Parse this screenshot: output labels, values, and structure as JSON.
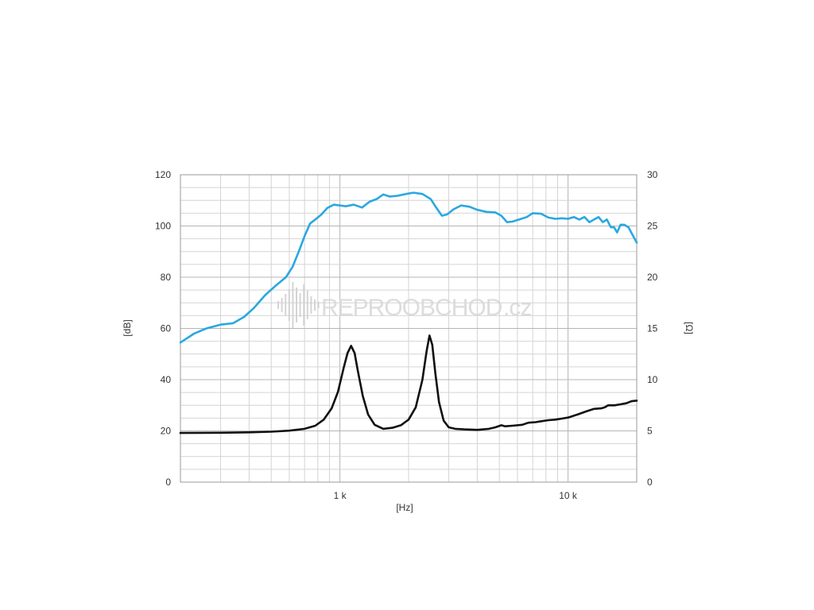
{
  "chart_data": {
    "type": "line",
    "xlabel": "[Hz]",
    "ylabel_left": "[dB]",
    "ylabel_right": "[Ω]",
    "x_scale": "log",
    "xlim": [
      200,
      20000
    ],
    "ylim_left": [
      0,
      120
    ],
    "ylim_right": [
      0,
      30
    ],
    "x_tick_labels": [
      {
        "value": 1000,
        "label": "1 k"
      },
      {
        "value": 10000,
        "label": "10 k"
      }
    ],
    "y_left_ticks": [
      0,
      20,
      40,
      60,
      80,
      100,
      120
    ],
    "y_right_ticks": [
      0,
      5,
      10,
      15,
      20,
      25,
      30
    ],
    "grid": true,
    "series": [
      {
        "axis": "left",
        "color": "#29a8e0",
        "points": [
          [
            200,
            54.5
          ],
          [
            230,
            58
          ],
          [
            260,
            60
          ],
          [
            300,
            61.5
          ],
          [
            340,
            62
          ],
          [
            380,
            64.5
          ],
          [
            420,
            68
          ],
          [
            470,
            73
          ],
          [
            520,
            76.5
          ],
          [
            580,
            80
          ],
          [
            620,
            84
          ],
          [
            660,
            90
          ],
          [
            700,
            96
          ],
          [
            740,
            101
          ],
          [
            780,
            102.5
          ],
          [
            830,
            104.5
          ],
          [
            880,
            107
          ],
          [
            940,
            108.3
          ],
          [
            1000,
            108
          ],
          [
            1060,
            107.7
          ],
          [
            1150,
            108.3
          ],
          [
            1250,
            107.2
          ],
          [
            1350,
            109.5
          ],
          [
            1450,
            110.5
          ],
          [
            1550,
            112.3
          ],
          [
            1650,
            111.5
          ],
          [
            1800,
            111.8
          ],
          [
            1950,
            112.5
          ],
          [
            2100,
            113
          ],
          [
            2300,
            112.5
          ],
          [
            2500,
            110.5
          ],
          [
            2650,
            107
          ],
          [
            2800,
            104
          ],
          [
            2950,
            104.5
          ],
          [
            3150,
            106.5
          ],
          [
            3400,
            108
          ],
          [
            3700,
            107.5
          ],
          [
            4000,
            106.3
          ],
          [
            4400,
            105.5
          ],
          [
            4800,
            105.3
          ],
          [
            5100,
            104
          ],
          [
            5400,
            101.5
          ],
          [
            5700,
            101.7
          ],
          [
            6100,
            102.5
          ],
          [
            6600,
            103.5
          ],
          [
            7000,
            105
          ],
          [
            7600,
            104.8
          ],
          [
            8200,
            103.3
          ],
          [
            8800,
            102.8
          ],
          [
            9400,
            103
          ],
          [
            10000,
            102.8
          ],
          [
            10600,
            103.5
          ],
          [
            11200,
            102.5
          ],
          [
            11800,
            103.5
          ],
          [
            12400,
            101.5
          ],
          [
            13000,
            102.5
          ],
          [
            13600,
            103.5
          ],
          [
            14200,
            101.5
          ],
          [
            14800,
            102.5
          ],
          [
            15400,
            99.5
          ],
          [
            15900,
            99.5
          ],
          [
            16400,
            97.5
          ],
          [
            17000,
            100.5
          ],
          [
            17600,
            100.5
          ],
          [
            18400,
            99.5
          ],
          [
            19300,
            96
          ],
          [
            20000,
            93.5
          ]
        ]
      },
      {
        "axis": "right",
        "color": "#111111",
        "points": [
          [
            200,
            4.8
          ],
          [
            300,
            4.82
          ],
          [
            400,
            4.86
          ],
          [
            500,
            4.92
          ],
          [
            600,
            5.02
          ],
          [
            700,
            5.2
          ],
          [
            780,
            5.5
          ],
          [
            850,
            6.1
          ],
          [
            920,
            7.2
          ],
          [
            980,
            8.8
          ],
          [
            1040,
            11.2
          ],
          [
            1080,
            12.6
          ],
          [
            1120,
            13.3
          ],
          [
            1160,
            12.6
          ],
          [
            1200,
            10.8
          ],
          [
            1260,
            8.4
          ],
          [
            1330,
            6.6
          ],
          [
            1420,
            5.6
          ],
          [
            1550,
            5.2
          ],
          [
            1700,
            5.3
          ],
          [
            1850,
            5.55
          ],
          [
            2000,
            6.1
          ],
          [
            2150,
            7.3
          ],
          [
            2300,
            10.0
          ],
          [
            2400,
            12.8
          ],
          [
            2470,
            14.3
          ],
          [
            2540,
            13.4
          ],
          [
            2620,
            10.6
          ],
          [
            2720,
            7.8
          ],
          [
            2850,
            6.0
          ],
          [
            3000,
            5.35
          ],
          [
            3200,
            5.2
          ],
          [
            3500,
            5.15
          ],
          [
            4000,
            5.1
          ],
          [
            4500,
            5.2
          ],
          [
            4800,
            5.35
          ],
          [
            5100,
            5.55
          ],
          [
            5300,
            5.45
          ],
          [
            5700,
            5.5
          ],
          [
            6300,
            5.6
          ],
          [
            6700,
            5.8
          ],
          [
            7200,
            5.85
          ],
          [
            7700,
            5.95
          ],
          [
            8200,
            6.05
          ],
          [
            8800,
            6.1
          ],
          [
            9400,
            6.2
          ],
          [
            10000,
            6.3
          ],
          [
            11000,
            6.6
          ],
          [
            12000,
            6.9
          ],
          [
            13000,
            7.15
          ],
          [
            14000,
            7.2
          ],
          [
            14500,
            7.3
          ],
          [
            15000,
            7.5
          ],
          [
            16000,
            7.5
          ],
          [
            17000,
            7.6
          ],
          [
            18000,
            7.7
          ],
          [
            19000,
            7.9
          ],
          [
            20000,
            7.95
          ]
        ]
      }
    ]
  },
  "watermark": {
    "text": "REPROOBCHOD",
    "suffix": ".cz"
  }
}
